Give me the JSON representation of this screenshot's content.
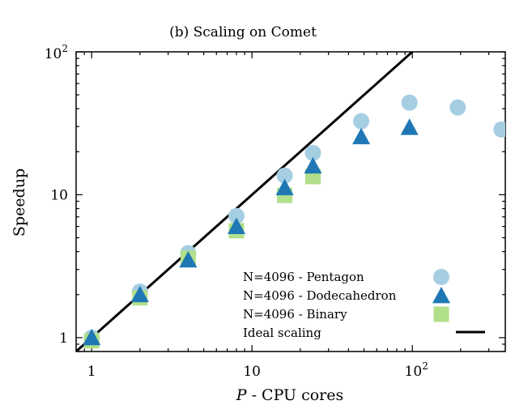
{
  "chart_data": {
    "type": "scatter",
    "title": "(b) Scaling on Comet",
    "xlabel_var": "P",
    "xlabel_rest": " - CPU cores",
    "ylabel": "Speedup",
    "xscale": "log",
    "yscale": "log",
    "xlim": [
      0.8,
      380
    ],
    "ylim": [
      0.8,
      100
    ],
    "x_tick_labels": [
      {
        "value": 1,
        "label": "1"
      },
      {
        "value": 10,
        "label": "10"
      },
      {
        "value": 100,
        "base": "10",
        "exp": "2"
      }
    ],
    "y_tick_labels": [
      {
        "value": 1,
        "label": "1"
      },
      {
        "value": 10,
        "label": "10"
      },
      {
        "value": 100,
        "base": "10",
        "exp": "2"
      }
    ],
    "legend_position": "lower-right",
    "series": [
      {
        "name": "N=4096 - Pentagon",
        "marker": "circle",
        "color": "#a6cee3",
        "x": [
          1,
          2,
          4,
          8,
          16,
          24,
          48,
          96,
          192,
          360
        ],
        "y": [
          1.0,
          2.1,
          3.9,
          7.1,
          13.6,
          19.6,
          32.7,
          44.1,
          40.8,
          28.6
        ]
      },
      {
        "name": "N=4096 - Dodecahedron",
        "marker": "triangle",
        "color": "#1f78b4",
        "x": [
          1,
          2,
          4,
          8,
          16,
          24,
          48,
          96
        ],
        "y": [
          1.0,
          2.0,
          3.5,
          6.0,
          11.2,
          15.9,
          25.5,
          29.6
        ]
      },
      {
        "name": "N=4096 - Binary",
        "marker": "square",
        "color": "#b2df8a",
        "x": [
          1,
          2,
          4,
          8,
          16,
          24
        ],
        "y": [
          0.95,
          1.9,
          3.6,
          5.6,
          9.9,
          13.4
        ]
      },
      {
        "name": "Ideal scaling",
        "marker": "line",
        "color": "#000000",
        "x": [
          0.8,
          100
        ],
        "y": [
          0.8,
          100
        ]
      }
    ]
  }
}
